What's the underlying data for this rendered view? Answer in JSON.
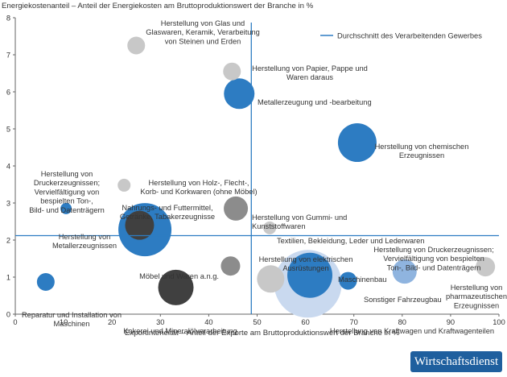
{
  "chart_data": {
    "type": "scatter",
    "title": "",
    "ylabel": "Energiekostenanteil – Anteil der Energiekosten am Bruttoproduktionswert der Branche in %",
    "xlabel": "Exportinteneität – Anteil der Exporte am Bruttoproduktionswert der Branche in %",
    "xlim": [
      0,
      100
    ],
    "ylim": [
      0,
      8
    ],
    "xticks": [
      "0",
      "10",
      "20",
      "30",
      "40",
      "50",
      "60",
      "70",
      "80",
      "90",
      "100"
    ],
    "yticks": [
      "0",
      "1",
      "2",
      "3",
      "4",
      "5",
      "6",
      "7",
      "8"
    ],
    "grid": false,
    "legend": {
      "placement": "top-right",
      "label": "Durchschnitt des Verarbeitenden Gewerbes"
    },
    "averages": {
      "x": 48.8,
      "y": 2.12
    },
    "colors": {
      "dark": "#404040",
      "mid_grey": "#8c8c8c",
      "light_grey": "#c8c8c8",
      "blue": "#2d7cc2",
      "light_blue": "#8fb4df",
      "pale_blue": "#c9d9ef",
      "avg_line": "#2d7cc2"
    },
    "points": [
      {
        "name": "Herstellung von Glas und Glaswaren, Keramik, Verarbeitung von Steinen und Erden",
        "x": 25,
        "y": 7.25,
        "size": 11,
        "color": "light_grey",
        "label": [
          "Herstellung von Glas und",
          "Glaswaren, Keramik, Verarbeitung",
          "von Steinen und Erden"
        ]
      },
      {
        "name": "Herstellung von Papier, Pappe und Waren daraus",
        "x": 44.8,
        "y": 6.55,
        "size": 11,
        "color": "light_grey",
        "label": [
          "Herstellung von Papier, Pappe und",
          "Waren daraus"
        ]
      },
      {
        "name": "Metallerzeugung und -bearbeitung",
        "x": 46.3,
        "y": 5.95,
        "size": 19,
        "color": "blue",
        "label": [
          "Metallerzeugung und -bearbeitung"
        ]
      },
      {
        "name": "Herstellung von chemischen Erzeugnissen",
        "x": 70.7,
        "y": 4.63,
        "size": 24,
        "color": "blue",
        "label": [
          "Herstellung von chemischen",
          "Erzeugnissen"
        ]
      },
      {
        "name": "Herstellung von Holz-, Flecht-, Korb- und Korkwaren (ohne Möbel)",
        "x": 22.5,
        "y": 3.48,
        "size": 8,
        "color": "light_grey",
        "label": [
          "Herstellung von Holz-, Flecht-,",
          "Korb- und Korkwaren (ohne Möbel)"
        ]
      },
      {
        "name": "Herstellung von Druckerzeugnissen; Vervielfältigung von bespielten Ton-, Bild- und Datenträgern",
        "x": 10.5,
        "y": 2.85,
        "size": 7,
        "color": "blue",
        "label": [
          "Herstellung von",
          "Druckerzeugnissen;",
          "Vervielfältigung von",
          "bespielten Ton-,",
          "Bild- und Datenträgern"
        ]
      },
      {
        "name": "Herstellung von Gummi- und Kunststoffwaren",
        "x": 45.6,
        "y": 2.85,
        "size": 15,
        "color": "mid_grey",
        "label": [
          "Herstellung von Gummi- und",
          "Kunststoffwaren"
        ]
      },
      {
        "name": "Nahrungs- und Futtermittel, Getränke, Tabakerzeugnisse",
        "x": 25.7,
        "y": 2.4,
        "size": 18,
        "color": "dark",
        "label": [
          "Nahrungs- und Futtermittel,",
          "Getränke, Tabakerzeugnisse"
        ]
      },
      {
        "name": "Herstellung von Metallerzeugnissen",
        "x": 26.8,
        "y": 2.28,
        "size": 33,
        "color": "blue",
        "label": [
          "Herstellung von",
          "Metallerzeugnissen"
        ]
      },
      {
        "name": "Textilien, Bekleidung, Leder und Lederwaren",
        "x": 52.6,
        "y": 2.33,
        "size": 8,
        "color": "light_grey",
        "label": [
          "Textilien, Bekleidung, Leder und Lederwaren"
        ]
      },
      {
        "name": "Möbel und Waren a.n.g.",
        "x": 44.5,
        "y": 1.3,
        "size": 12,
        "color": "mid_grey",
        "label": [
          "Möbel und Waren a.n.g."
        ]
      },
      {
        "name": "Herstellung von elektrischen Ausrüstungen",
        "x": 52.8,
        "y": 0.95,
        "size": 17,
        "color": "light_grey",
        "label": [
          "Herstellung von elektrischen",
          "Ausrüstungen"
        ]
      },
      {
        "name": "Maschinenbau",
        "x": 60.9,
        "y": 1.05,
        "size": 28,
        "color": "blue",
        "label": [
          "Maschinenbau"
        ]
      },
      {
        "name": "Herstellung von Kraftwagen und Kraftwagenteilen",
        "x": 60.5,
        "y": 0.82,
        "size": 42,
        "color": "pale_blue",
        "label": [
          "Herstellung von Kraftwagen und Kraftwagenteilen"
        ]
      },
      {
        "name": "Sonstiger Fahrzeugbau",
        "x": 68.8,
        "y": 0.9,
        "size": 11,
        "color": "blue",
        "label": [
          "Sonstiger Fahrzeugbau"
        ]
      },
      {
        "name": "Herstellung von Druckerzeugnissen; Vervielfältigung von bespielten Ton-, Bild- und Datenträgern (2)",
        "x": 80.5,
        "y": 1.15,
        "size": 15,
        "color": "light_blue",
        "label": [
          "Herstellung von Druckerzeugnissen;",
          "Vervielfältigung von bespielten",
          "Ton-, Bild- und Datenträgern"
        ]
      },
      {
        "name": "Herstellung von pharmazeutischen Erzeugnissen",
        "x": 97.2,
        "y": 1.28,
        "size": 12,
        "color": "light_grey",
        "label": [
          "Herstellung von",
          "pharmazeutischen",
          "Erzeugnissen"
        ]
      },
      {
        "name": "Reparatur und Installation von Maschinen",
        "x": 6.3,
        "y": 0.87,
        "size": 11,
        "color": "blue",
        "label": [
          "Reparatur und Installation von",
          "Maschinen"
        ]
      },
      {
        "name": "Kokerei und Mineralölverarbeitung",
        "x": 33.2,
        "y": 0.72,
        "size": 22,
        "color": "dark",
        "label": [
          "Kokerei und Mineralölverarbeitung"
        ]
      }
    ]
  },
  "brand": "Wirtschaftsdienst"
}
